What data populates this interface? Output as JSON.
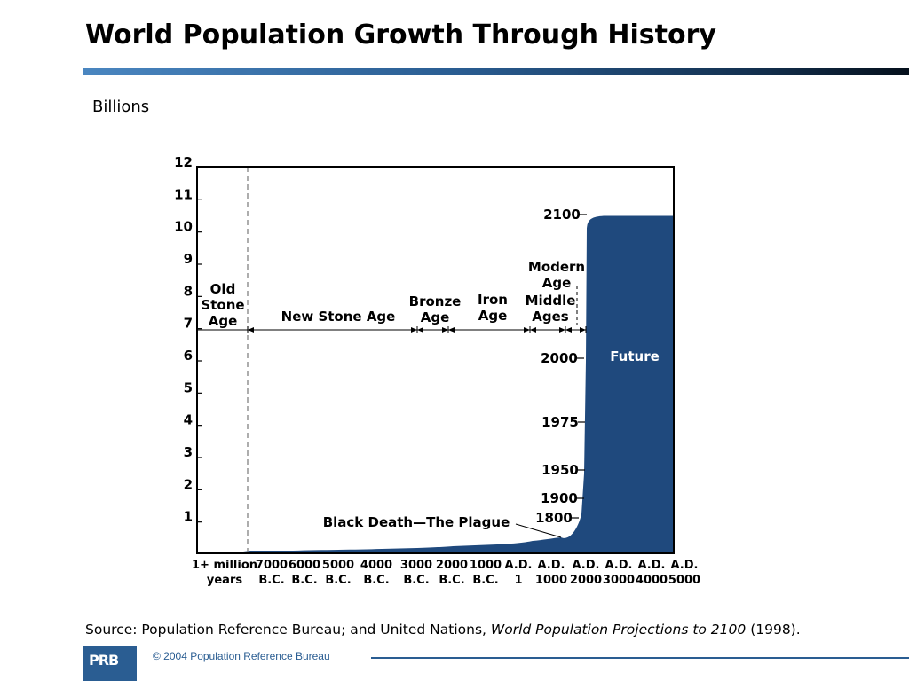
{
  "title": "World Population Growth Through History",
  "source": {
    "prefix": "Source: Population Reference Bureau; and United Nations, ",
    "italic": "World Population Projections to 2100",
    "suffix": " (1998)."
  },
  "footer": {
    "logo": "PRB",
    "copyright": "© 2004 Population Reference Bureau"
  },
  "colors": {
    "area": "#1f497d",
    "title_bar": "#2a5d92",
    "footer": "#2a5d92"
  },
  "chart_data": {
    "type": "area",
    "ylabel": "Billions",
    "ylim": [
      0,
      12
    ],
    "yticks": [
      "1",
      "2",
      "3",
      "4",
      "5",
      "6",
      "7",
      "8",
      "9",
      "10",
      "11",
      "12"
    ],
    "xtick_labels": [
      [
        "1+ million",
        "years"
      ],
      [
        "7000",
        "B.C."
      ],
      [
        "6000",
        "B.C."
      ],
      [
        "5000",
        "B.C."
      ],
      [
        "4000",
        "B.C."
      ],
      [
        "3000",
        "B.C."
      ],
      [
        "2000",
        "B.C."
      ],
      [
        "1000",
        "B.C."
      ],
      [
        "A.D.",
        "1"
      ],
      [
        "A.D.",
        "1000"
      ],
      [
        "A.D.",
        "2000"
      ],
      [
        "A.D.",
        "3000"
      ],
      [
        "A.D.",
        "4000"
      ],
      [
        "A.D.",
        "5000"
      ]
    ],
    "eras": [
      {
        "label": [
          "Old",
          "Stone",
          "Age"
        ]
      },
      {
        "label": [
          "New Stone Age"
        ]
      },
      {
        "label": [
          "Bronze",
          "Age"
        ]
      },
      {
        "label": [
          "Iron",
          "Age"
        ]
      },
      {
        "label": [
          "Middle",
          "Ages"
        ]
      },
      {
        "label": [
          "Modern",
          "Age"
        ]
      }
    ],
    "population_points": [
      {
        "year": "1800",
        "billions": 1.0
      },
      {
        "year": "1900",
        "billions": 1.6
      },
      {
        "year": "1950",
        "billions": 2.5
      },
      {
        "year": "1975",
        "billions": 4.0
      },
      {
        "year": "2000",
        "billions": 6.0
      },
      {
        "year": "2100",
        "billions": 10.5
      }
    ],
    "annotations": {
      "plague": "Black Death—The Plague",
      "future": "Future"
    }
  }
}
